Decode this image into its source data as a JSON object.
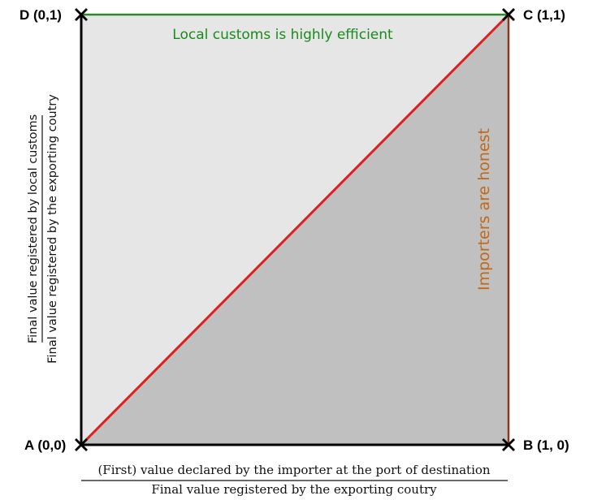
{
  "corners": {
    "a": "A (0,0)",
    "b": "B (1, 0)",
    "c": "C (1,1)",
    "d": "D (0,1)"
  },
  "edge_labels": {
    "top": "Local customs is highly efficient",
    "right": "Importers are honest"
  },
  "x_axis_label": {
    "numerator": "(First) value declared by the importer at the port of destination",
    "denominator": "Final value registered by the exporting coutry"
  },
  "y_axis_label": {
    "numerator": "Final value registered by local customs",
    "denominator": "Final value registered by the exporting coutry"
  },
  "colors": {
    "upper_region": "#e6e6e6",
    "lower_region": "#c0c0c0",
    "diagonal": "#dd1f1f",
    "top_edge": "#2a8a2a",
    "right_edge": "#8a3a1a",
    "frame": "#000000"
  }
}
